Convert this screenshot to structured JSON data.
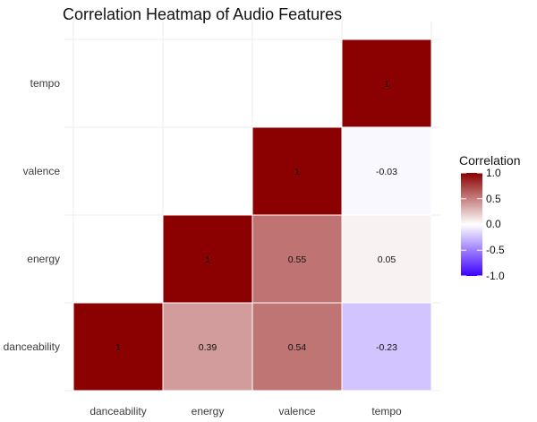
{
  "chart_data": {
    "type": "heatmap",
    "title": "Correlation Heatmap of Audio Features",
    "x_categories": [
      "danceability",
      "energy",
      "valence",
      "tempo"
    ],
    "y_categories": [
      "danceability",
      "energy",
      "valence",
      "tempo"
    ],
    "cells": [
      {
        "x": "danceability",
        "y": "danceability",
        "value": 1,
        "label": "1"
      },
      {
        "x": "energy",
        "y": "danceability",
        "value": 0.39,
        "label": "0.39"
      },
      {
        "x": "valence",
        "y": "danceability",
        "value": 0.54,
        "label": "0.54"
      },
      {
        "x": "tempo",
        "y": "danceability",
        "value": -0.23,
        "label": "-0.23"
      },
      {
        "x": "energy",
        "y": "energy",
        "value": 1,
        "label": "1"
      },
      {
        "x": "valence",
        "y": "energy",
        "value": 0.55,
        "label": "0.55"
      },
      {
        "x": "tempo",
        "y": "energy",
        "value": 0.05,
        "label": "0.05"
      },
      {
        "x": "valence",
        "y": "valence",
        "value": 1,
        "label": "1"
      },
      {
        "x": "tempo",
        "y": "valence",
        "value": -0.03,
        "label": "-0.03"
      },
      {
        "x": "tempo",
        "y": "tempo",
        "value": 1,
        "label": "1"
      }
    ],
    "legend": {
      "title": "Correlation",
      "ticks": [
        "1.0",
        "0.5",
        "0.0",
        "-0.5",
        "-1.0"
      ],
      "range": [
        -1,
        1
      ],
      "placement": "right"
    },
    "colors": {
      "low": "#3c00ff",
      "mid": "#ffffff",
      "high": "#8b0000",
      "grid": "#ececec"
    }
  }
}
